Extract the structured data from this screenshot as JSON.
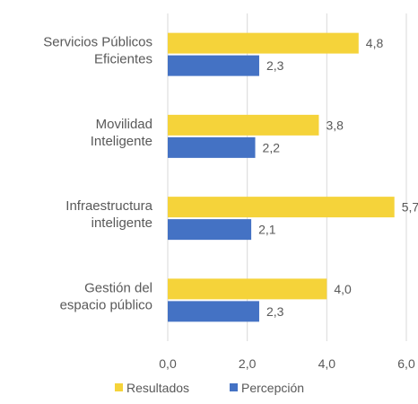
{
  "chart_data": {
    "type": "bar",
    "orientation": "horizontal",
    "categories": [
      [
        "Servicios Públicos",
        "Eficientes"
      ],
      [
        "Movilidad",
        "Inteligente"
      ],
      [
        "Infraestructura",
        "inteligente"
      ],
      [
        "Gestión del",
        "espacio público"
      ]
    ],
    "series": [
      {
        "name": "Resultados",
        "color": "#f5d33a",
        "values": [
          4.8,
          3.8,
          5.7,
          4.0
        ],
        "labels": [
          "4,8",
          "3,8",
          "5,7",
          "4,0"
        ]
      },
      {
        "name": "Percepción",
        "color": "#4472c4",
        "values": [
          2.3,
          2.2,
          2.1,
          2.3
        ],
        "labels": [
          "2,3",
          "2,2",
          "2,1",
          "2,3"
        ]
      }
    ],
    "xlim": [
      0,
      6
    ],
    "xticks": [
      0,
      2,
      4,
      6
    ],
    "xtick_labels": [
      "0,0",
      "2,0",
      "4,0",
      "6,0"
    ],
    "grid": true,
    "legend": "bottom",
    "title": "",
    "xlabel": "",
    "ylabel": ""
  }
}
